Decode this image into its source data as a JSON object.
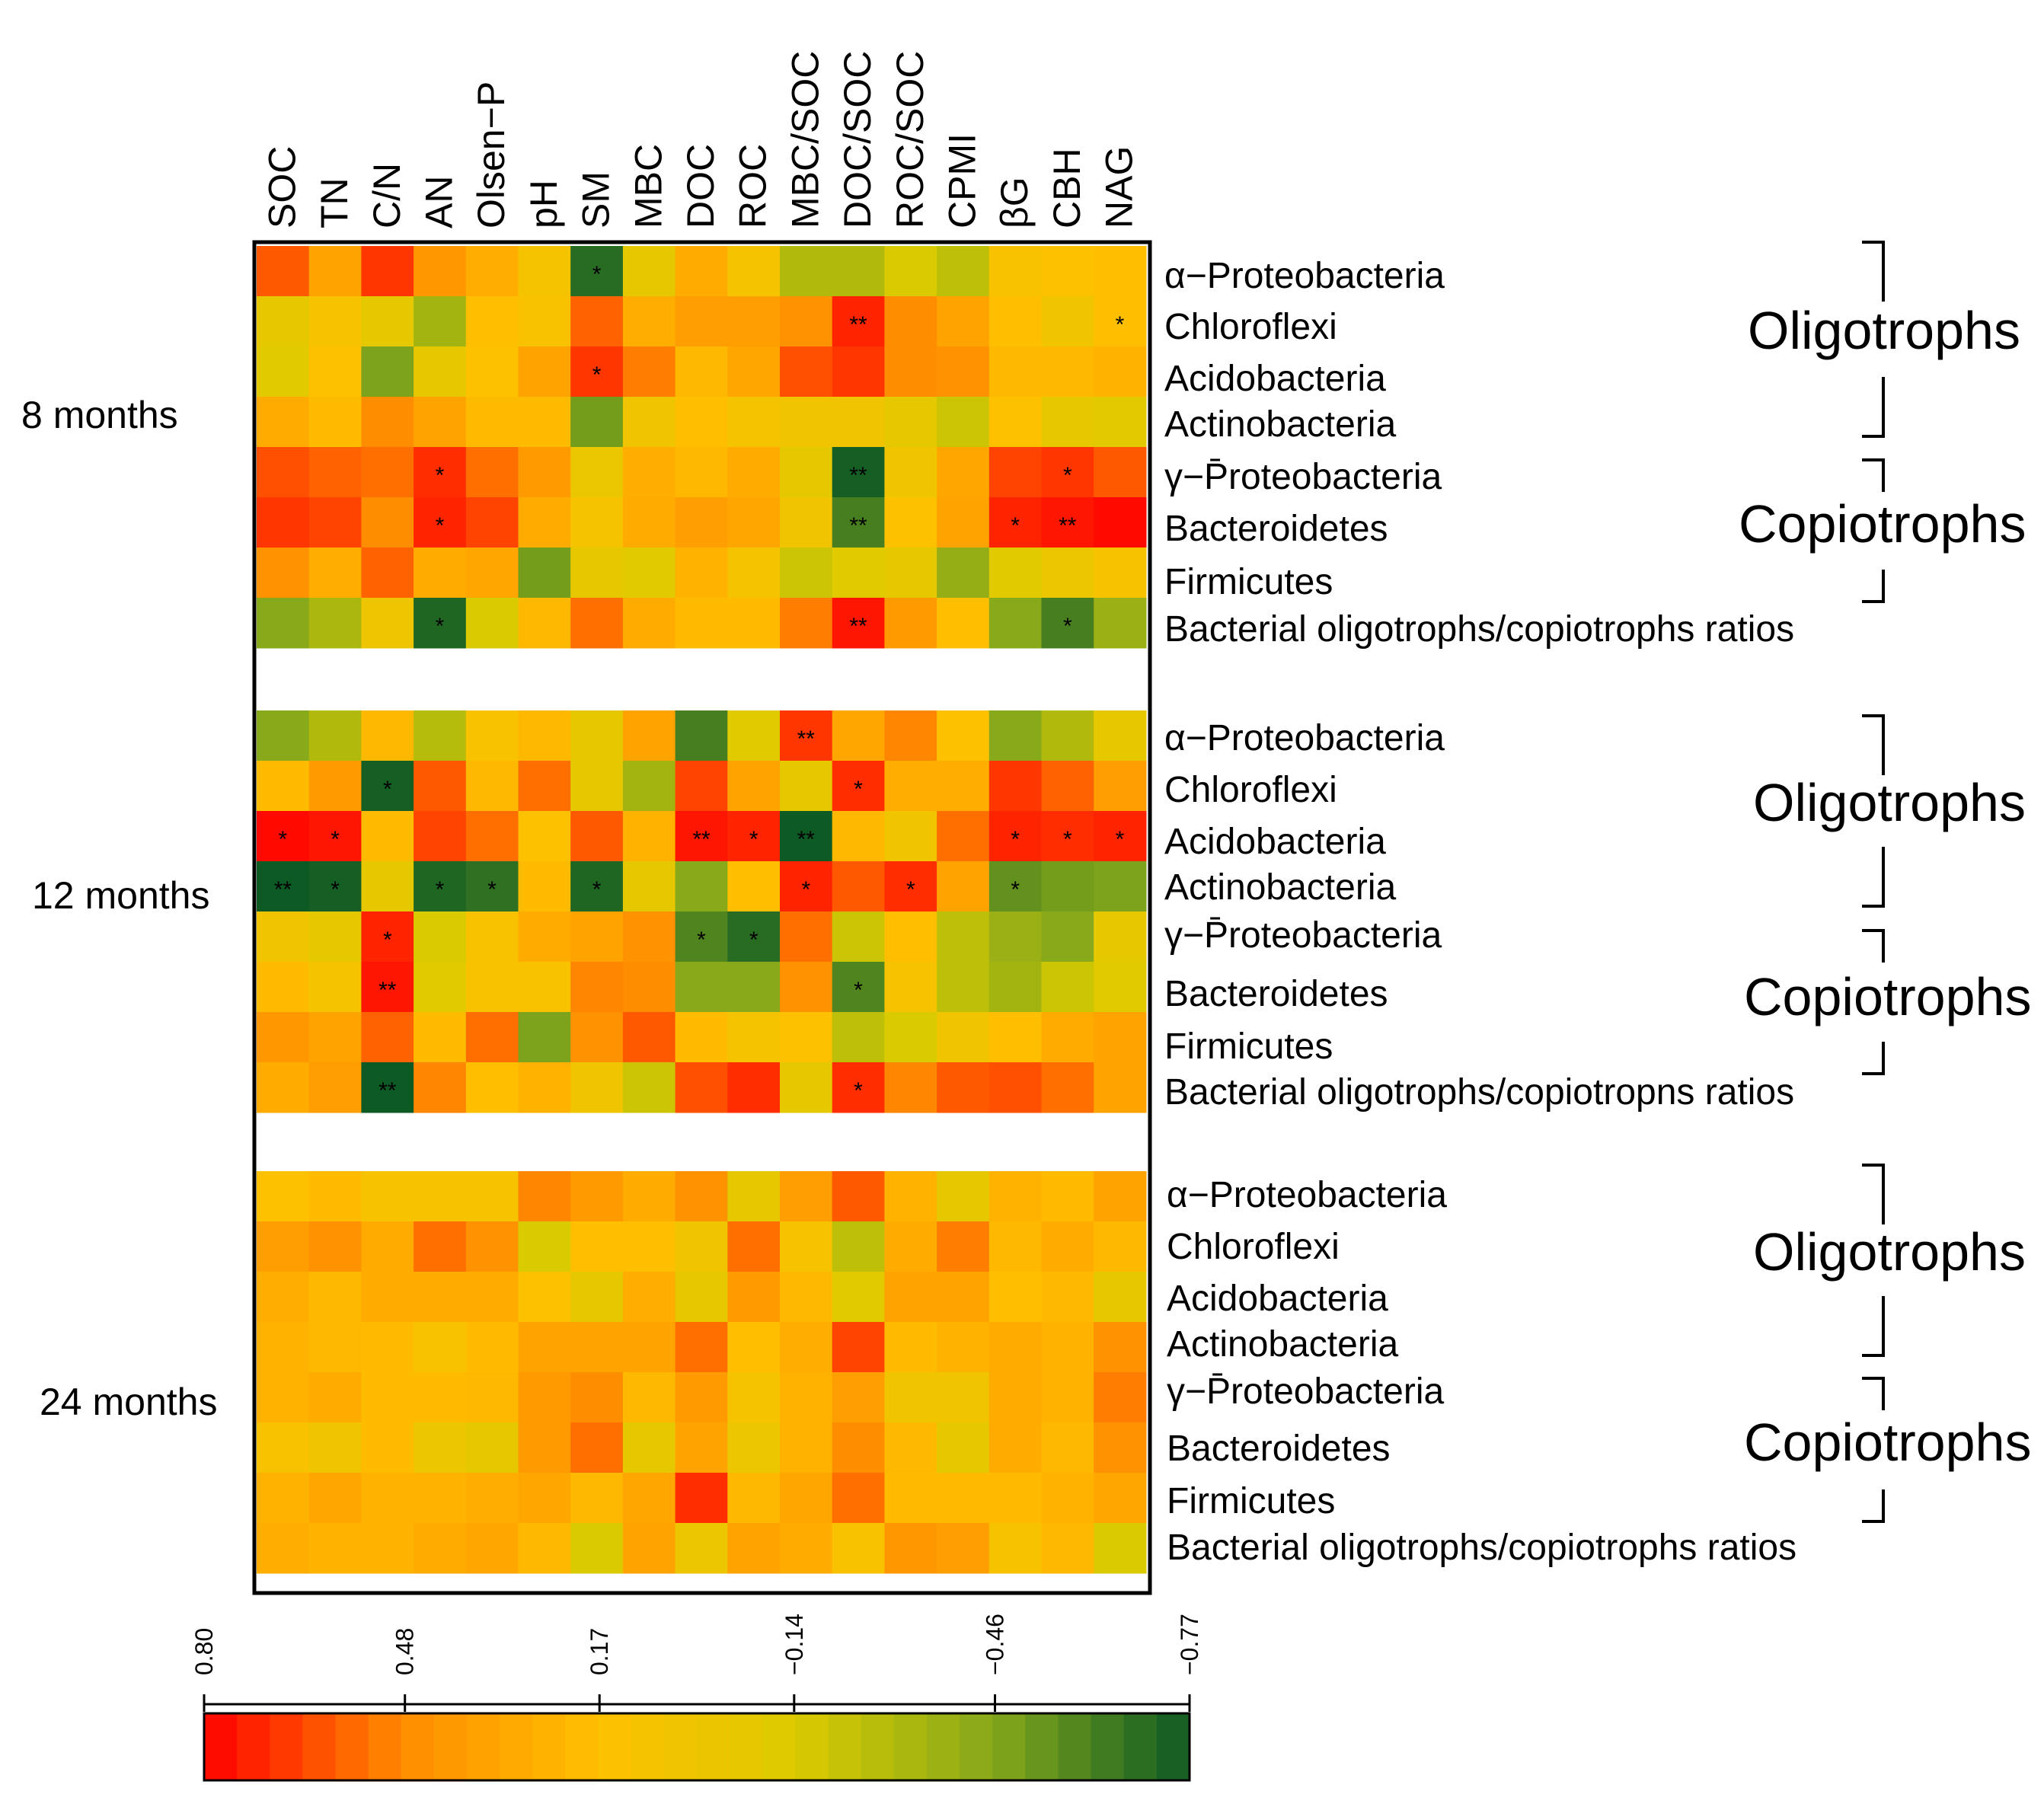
{
  "chart_data": {
    "type": "heatmap",
    "columns": [
      "SOC",
      "TN",
      "C/N",
      "AN",
      "Olsen−P",
      "pH",
      "SM",
      "MBC",
      "DOC",
      "ROC",
      "MBC/SOC",
      "DOC/SOC",
      "ROC/SOC",
      "CPMI",
      "βG",
      "CBH",
      "NAG"
    ],
    "row_labels": [
      "α−Proteobacteria",
      "Chloroflexi",
      "Acidobacteria",
      "Actinobacteria",
      "γ−P̄roteobacteria",
      "Bacteroidetes",
      "Firmicutes"
    ],
    "ratio_labels": {
      "8 months": "Bacterial oligotrophs/copiotrophs ratios",
      "12 months": "Bacterial oligotrophs/copiotropns ratios",
      "24 months": "Bacterial oligotrophs/copiotrophs ratios"
    },
    "group_labels": {
      "oligotrophs": "Oligotrophs",
      "copiotrophs": "Copiotrophs"
    },
    "colorbar": {
      "min": -0.77,
      "max": 0.8,
      "tick_values": [
        0.8,
        0.48,
        0.17,
        -0.14,
        -0.46,
        -0.77
      ],
      "tick_labels": [
        "0.80",
        "0.48",
        "0.17",
        "−0.14",
        "−0.46",
        "−0.77"
      ],
      "colors": [
        "#ff0000",
        "#ff8c00",
        "#ffc000",
        "#dccb00",
        "#86a81a",
        "#0d5a25"
      ]
    },
    "blocks": [
      {
        "label": "8 months",
        "values": [
          [
            0.6,
            0.35,
            0.68,
            0.42,
            0.28,
            0.08,
            -0.7,
            -0.05,
            0.3,
            0.08,
            -0.3,
            -0.3,
            -0.15,
            -0.25,
            0.12,
            0.15,
            0.18
          ],
          [
            -0.05,
            0.1,
            -0.05,
            -0.35,
            0.18,
            0.12,
            0.58,
            0.28,
            0.38,
            0.38,
            0.45,
            0.72,
            0.48,
            0.35,
            0.18,
            0.05,
            0.18
          ],
          [
            -0.1,
            0.15,
            -0.48,
            -0.05,
            0.15,
            0.35,
            0.68,
            0.52,
            0.22,
            0.32,
            0.62,
            0.68,
            0.48,
            0.45,
            0.22,
            0.22,
            0.25
          ],
          [
            0.3,
            0.2,
            0.48,
            0.35,
            0.2,
            0.2,
            -0.5,
            0.05,
            0.18,
            0.08,
            0.05,
            0.05,
            -0.05,
            -0.2,
            0.15,
            -0.05,
            -0.08
          ],
          [
            0.62,
            0.58,
            0.55,
            0.7,
            0.55,
            0.4,
            -0.02,
            0.28,
            0.22,
            0.3,
            -0.05,
            -0.75,
            0.05,
            0.32,
            0.65,
            0.68,
            0.6
          ],
          [
            0.68,
            0.65,
            0.48,
            0.72,
            0.65,
            0.3,
            0.08,
            0.3,
            0.38,
            0.32,
            0.05,
            -0.62,
            0.15,
            0.35,
            0.72,
            0.75,
            0.78
          ],
          [
            0.45,
            0.28,
            0.58,
            0.3,
            0.32,
            -0.5,
            -0.05,
            -0.1,
            0.25,
            0.08,
            -0.2,
            -0.1,
            -0.05,
            -0.4,
            -0.1,
            0.0,
            0.1
          ],
          [
            -0.45,
            -0.32,
            0.02,
            -0.72,
            -0.15,
            0.22,
            0.55,
            0.3,
            0.2,
            0.2,
            0.52,
            0.75,
            0.4,
            0.18,
            -0.45,
            -0.62,
            -0.38
          ]
        ],
        "stars": [
          [
            "",
            "",
            "",
            "",
            "",
            "",
            "*",
            "",
            "",
            "",
            "",
            "",
            "",
            "",
            "",
            "",
            ""
          ],
          [
            "",
            "",
            "",
            "",
            "",
            "",
            "",
            "",
            "",
            "",
            "",
            "**",
            "",
            "",
            "",
            "",
            "*"
          ],
          [
            "",
            "",
            "",
            "",
            "",
            "",
            "*",
            "",
            "",
            "",
            "",
            "",
            "",
            "",
            "",
            "",
            ""
          ],
          [
            "",
            "",
            "",
            "",
            "",
            "",
            "",
            "",
            "",
            "",
            "",
            "",
            "",
            "",
            "",
            "",
            ""
          ],
          [
            "",
            "",
            "",
            "*",
            "",
            "",
            "",
            "",
            "",
            "",
            "",
            "**",
            "",
            "",
            "",
            "*",
            ""
          ],
          [
            "",
            "",
            "",
            "*",
            "",
            "",
            "",
            "",
            "",
            "",
            "",
            "**",
            "",
            "",
            "*",
            "**",
            ""
          ],
          [
            "",
            "",
            "",
            "",
            "",
            "",
            "",
            "",
            "",
            "",
            "",
            "",
            "",
            "",
            "",
            "",
            ""
          ],
          [
            "",
            "",
            "",
            "*",
            "",
            "",
            "",
            "",
            "",
            "",
            "",
            "**",
            "",
            "",
            "",
            "*",
            ""
          ]
        ]
      },
      {
        "label": "12 months",
        "values": [
          [
            -0.45,
            -0.3,
            0.22,
            -0.28,
            0.12,
            0.22,
            -0.05,
            0.35,
            -0.62,
            -0.1,
            0.68,
            0.32,
            0.5,
            0.15,
            -0.45,
            -0.3,
            -0.05
          ],
          [
            0.2,
            0.4,
            -0.75,
            0.6,
            0.22,
            0.55,
            -0.05,
            -0.35,
            0.65,
            0.35,
            -0.05,
            0.7,
            0.28,
            0.28,
            0.68,
            0.58,
            0.38
          ],
          [
            0.78,
            0.75,
            0.2,
            0.65,
            0.55,
            0.15,
            0.6,
            0.25,
            0.75,
            0.72,
            -0.77,
            0.22,
            0.05,
            0.55,
            0.72,
            0.7,
            0.72
          ],
          [
            -0.77,
            -0.75,
            -0.05,
            -0.72,
            -0.68,
            0.2,
            -0.72,
            -0.05,
            -0.45,
            0.18,
            0.72,
            0.6,
            0.7,
            0.35,
            -0.55,
            -0.5,
            -0.48
          ],
          [
            0.05,
            -0.05,
            0.72,
            -0.15,
            0.12,
            0.3,
            0.35,
            0.45,
            -0.6,
            -0.7,
            0.55,
            -0.2,
            0.18,
            -0.25,
            -0.38,
            -0.45,
            -0.05
          ],
          [
            0.2,
            0.08,
            0.75,
            -0.1,
            0.12,
            0.12,
            0.5,
            0.48,
            -0.45,
            -0.45,
            0.45,
            -0.6,
            0.1,
            -0.25,
            -0.35,
            -0.2,
            -0.1
          ],
          [
            0.42,
            0.35,
            0.58,
            0.2,
            0.55,
            -0.48,
            0.45,
            0.6,
            0.2,
            0.08,
            0.15,
            -0.25,
            -0.15,
            0.05,
            0.18,
            0.3,
            0.35
          ],
          [
            0.3,
            0.38,
            -0.77,
            0.5,
            0.18,
            0.25,
            0.05,
            -0.2,
            0.62,
            0.7,
            -0.05,
            0.7,
            0.5,
            0.6,
            0.62,
            0.55,
            0.35
          ]
        ],
        "stars": [
          [
            "",
            "",
            "",
            "",
            "",
            "",
            "",
            "",
            "",
            "",
            "**",
            "",
            "",
            "",
            "",
            "",
            ""
          ],
          [
            "",
            "",
            "*",
            "",
            "",
            "",
            "",
            "",
            "",
            "",
            "",
            "*",
            "",
            "",
            "",
            "",
            ""
          ],
          [
            "*",
            "*",
            "",
            "",
            "",
            "",
            "",
            "",
            "**",
            "*",
            "**",
            "",
            "",
            "",
            "*",
            "*",
            "*"
          ],
          [
            "**",
            "*",
            "",
            "*",
            "*",
            "",
            "*",
            "",
            "",
            "",
            "*",
            "",
            "*",
            "",
            "*",
            "",
            ""
          ],
          [
            "",
            "",
            "*",
            "",
            "",
            "",
            "",
            "",
            "*",
            "*",
            "",
            "",
            "",
            "",
            "",
            "",
            ""
          ],
          [
            "",
            "",
            "**",
            "",
            "",
            "",
            "",
            "",
            "",
            "",
            "",
            "*",
            "",
            "",
            "",
            "",
            ""
          ],
          [
            "",
            "",
            "",
            "",
            "",
            "",
            "",
            "",
            "",
            "",
            "",
            "",
            "",
            "",
            "",
            "",
            ""
          ],
          [
            "",
            "",
            "**",
            "",
            "",
            "",
            "",
            "",
            "",
            "",
            "",
            "*",
            "",
            "",
            "",
            "",
            ""
          ]
        ]
      },
      {
        "label": "24 months",
        "values": [
          [
            0.15,
            0.2,
            0.1,
            0.1,
            0.1,
            0.5,
            0.4,
            0.3,
            0.45,
            -0.05,
            0.38,
            0.6,
            0.25,
            -0.05,
            0.25,
            0.2,
            0.35
          ],
          [
            0.38,
            0.45,
            0.3,
            0.55,
            0.45,
            -0.15,
            0.18,
            0.18,
            0.05,
            0.55,
            0.1,
            -0.25,
            0.3,
            0.52,
            0.22,
            0.3,
            0.22
          ],
          [
            0.28,
            0.22,
            0.3,
            0.3,
            0.3,
            0.15,
            -0.05,
            0.28,
            -0.05,
            0.4,
            0.22,
            -0.1,
            0.35,
            0.35,
            0.18,
            0.22,
            -0.05
          ],
          [
            0.25,
            0.22,
            0.2,
            0.12,
            0.2,
            0.35,
            0.35,
            0.35,
            0.55,
            0.18,
            0.28,
            0.65,
            0.2,
            0.25,
            0.3,
            0.25,
            0.45
          ],
          [
            0.25,
            0.3,
            0.2,
            0.2,
            0.22,
            0.4,
            0.48,
            0.22,
            0.4,
            0.08,
            0.25,
            0.38,
            0.05,
            0.05,
            0.3,
            0.25,
            0.52
          ],
          [
            0.12,
            0.05,
            0.2,
            0.0,
            -0.05,
            0.4,
            0.55,
            -0.05,
            0.35,
            0.0,
            0.25,
            0.48,
            0.22,
            -0.05,
            0.3,
            0.22,
            0.45
          ],
          [
            0.25,
            0.32,
            0.25,
            0.25,
            0.28,
            0.32,
            0.22,
            0.32,
            0.7,
            0.22,
            0.32,
            0.55,
            0.2,
            0.2,
            0.2,
            0.25,
            0.32
          ],
          [
            0.28,
            0.25,
            0.25,
            0.3,
            0.32,
            0.22,
            -0.15,
            0.35,
            0.0,
            0.35,
            0.3,
            0.12,
            0.42,
            0.38,
            0.1,
            0.22,
            -0.15
          ]
        ]
      }
    ]
  }
}
